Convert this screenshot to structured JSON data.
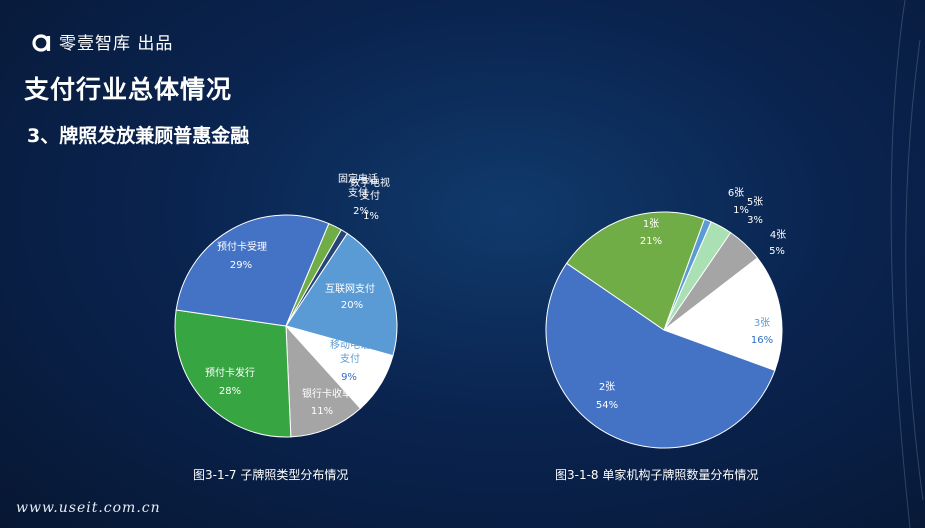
{
  "header": {
    "brand": "零壹智库 出品"
  },
  "page": {
    "title": "支付行业总体情况",
    "subtitle": "3、牌照发放兼顾普惠金融"
  },
  "footer": {
    "site": "www.useit.com.cn"
  },
  "colors": {
    "background": "#0a2450"
  },
  "chart_data": [
    {
      "type": "pie",
      "title": "图3-1-7 子牌照类型分布情况",
      "slices": [
        {
          "label": "互联网支付",
          "value": 20,
          "pct": "20%",
          "color": "#5b9bd5"
        },
        {
          "label": "移动电话支付",
          "value": 9,
          "pct": "9%",
          "color": "#ffffff"
        },
        {
          "label": "银行卡收单",
          "value": 11,
          "pct": "11%",
          "color": "#a5a5a5"
        },
        {
          "label": "预付卡发行",
          "value": 28,
          "pct": "28%",
          "color": "#36a542"
        },
        {
          "label": "预付卡受理",
          "value": 29,
          "pct": "29%",
          "color": "#4472c4"
        },
        {
          "label": "固定电话支付",
          "value": 2,
          "pct": "2%",
          "color": "#70ad47"
        },
        {
          "label": "数字电视支付",
          "value": 1,
          "pct": "1%",
          "color": "#264478"
        }
      ]
    },
    {
      "type": "pie",
      "title": "图3-1-8 单家机构子牌照数量分布情况",
      "slices": [
        {
          "label": "6张",
          "value": 1,
          "pct": "1%",
          "color": "#5b9bd5"
        },
        {
          "label": "5张",
          "value": 3,
          "pct": "3%",
          "color": "#a9e0b4"
        },
        {
          "label": "4张",
          "value": 5,
          "pct": "5%",
          "color": "#a5a5a5"
        },
        {
          "label": "3张",
          "value": 16,
          "pct": "16%",
          "color": "#ffffff"
        },
        {
          "label": "2张",
          "value": 54,
          "pct": "54%",
          "color": "#4472c4"
        },
        {
          "label": "1张",
          "value": 21,
          "pct": "21%",
          "color": "#70ad47"
        }
      ]
    }
  ]
}
